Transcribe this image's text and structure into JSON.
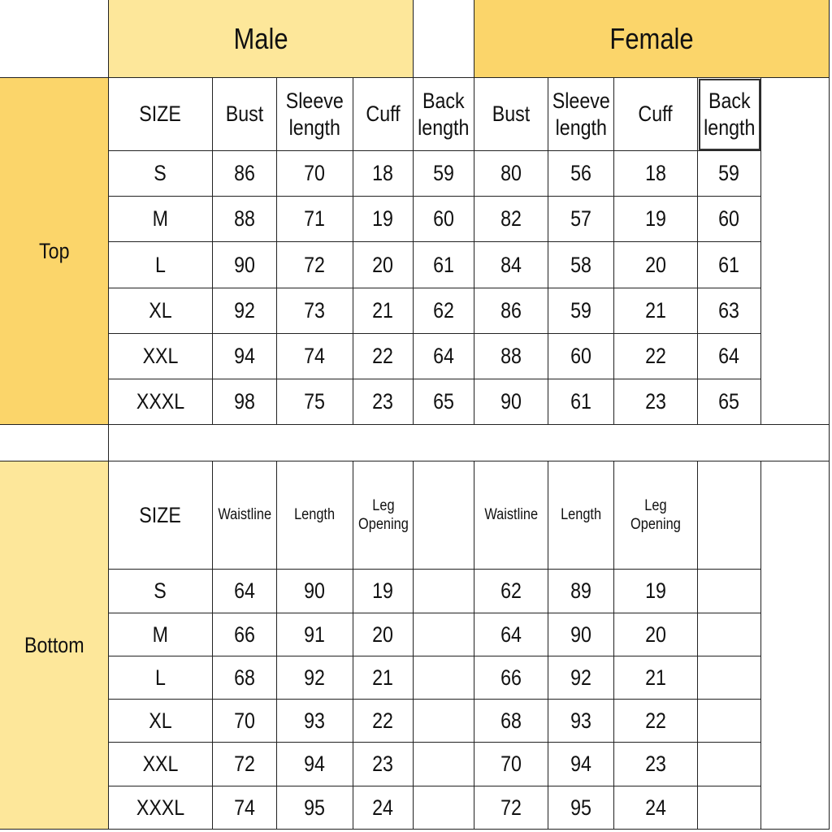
{
  "groups": {
    "male": "Male",
    "female": "Female"
  },
  "sections": {
    "top": "Top",
    "bottom": "Bottom"
  },
  "top_headers": {
    "size": "SIZE",
    "male": [
      "Bust",
      "Sleeve\nlength",
      "Cuff",
      "Back\nlength"
    ],
    "female": [
      "Bust",
      "Sleeve\nlength",
      "Cuff",
      "Back\nlength"
    ]
  },
  "top_rows": [
    {
      "size": "S",
      "male": [
        "86",
        "70",
        "18",
        "59"
      ],
      "female": [
        "80",
        "56",
        "18",
        "59"
      ]
    },
    {
      "size": "M",
      "male": [
        "88",
        "71",
        "19",
        "60"
      ],
      "female": [
        "82",
        "57",
        "19",
        "60"
      ]
    },
    {
      "size": "L",
      "male": [
        "90",
        "72",
        "20",
        "61"
      ],
      "female": [
        "84",
        "58",
        "20",
        "61"
      ]
    },
    {
      "size": "XL",
      "male": [
        "92",
        "73",
        "21",
        "62"
      ],
      "female": [
        "86",
        "59",
        "21",
        "63"
      ]
    },
    {
      "size": "XXL",
      "male": [
        "94",
        "74",
        "22",
        "64"
      ],
      "female": [
        "88",
        "60",
        "22",
        "64"
      ]
    },
    {
      "size": "XXXL",
      "male": [
        "98",
        "75",
        "23",
        "65"
      ],
      "female": [
        "90",
        "61",
        "23",
        "65"
      ]
    }
  ],
  "bottom_headers": {
    "size": "SIZE",
    "male": [
      "Waistline",
      "Length",
      "Leg\nOpening"
    ],
    "female": [
      "Waistline",
      "Length",
      "Leg\nOpening"
    ]
  },
  "bottom_rows": [
    {
      "size": "S",
      "male": [
        "64",
        "90",
        "19"
      ],
      "female": [
        "62",
        "89",
        "19"
      ]
    },
    {
      "size": "M",
      "male": [
        "66",
        "91",
        "20"
      ],
      "female": [
        "64",
        "90",
        "20"
      ]
    },
    {
      "size": "L",
      "male": [
        "68",
        "92",
        "21"
      ],
      "female": [
        "66",
        "92",
        "21"
      ]
    },
    {
      "size": "XL",
      "male": [
        "70",
        "93",
        "22"
      ],
      "female": [
        "68",
        "93",
        "22"
      ]
    },
    {
      "size": "XXL",
      "male": [
        "72",
        "94",
        "23"
      ],
      "female": [
        "70",
        "94",
        "23"
      ]
    },
    {
      "size": "XXXL",
      "male": [
        "74",
        "95",
        "24"
      ],
      "female": [
        "72",
        "95",
        "24"
      ]
    }
  ],
  "colors": {
    "header_yellow": "#fde79a",
    "top_label_yellow": "#fbd56a",
    "border": "#222222"
  }
}
